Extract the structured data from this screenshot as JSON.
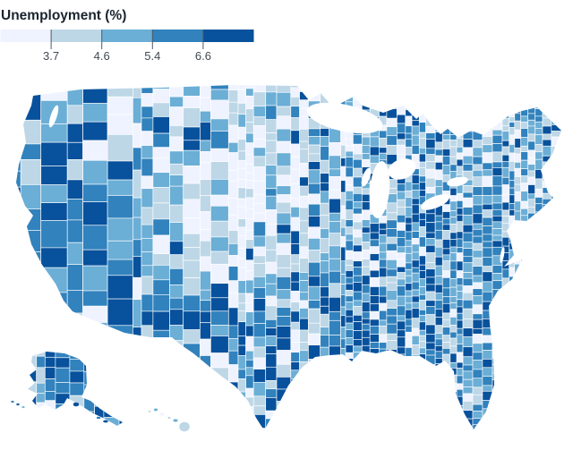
{
  "legend": {
    "title": "Unemployment (%)",
    "ticks": [
      "3.7",
      "4.6",
      "5.4",
      "6.6"
    ],
    "colors": [
      "#eff3ff",
      "#bdd7e7",
      "#6baed6",
      "#3182bd",
      "#08519c"
    ],
    "tick_color": "#4f5a64",
    "label_color": "#414a54",
    "title_color": "#1a242f"
  },
  "chart_data": {
    "type": "choropleth",
    "title": "Unemployment (%)",
    "geography": "United States counties, Albers USA projection with Alaska and Hawaii insets at lower left",
    "color_scale": {
      "type": "quantile",
      "scheme": "Blues",
      "classes": 5,
      "class_breaks_percent": [
        3.7,
        4.6,
        5.4,
        6.6
      ],
      "colors": [
        "#eff3ff",
        "#bdd7e7",
        "#6baed6",
        "#3182bd",
        "#08519c"
      ]
    },
    "legend_position": "top-left",
    "regional_pattern": [
      "Pacific coast (WA, OR, CA) and Nevada counties mostly in the highest quintiles (> 5.4%)",
      "Northern plains (MT, ND, SD, NE, KS, IA, MN) mostly in the lowest quintile (< 3.7%)",
      "Arizona, New Mexico and the Deep South (LA, MS, AL, GA) mostly in the highest quintile (> 6.6%)",
      "Appalachia (eastern KY, WV) shows a dark high-unemployment cluster",
      "Alaska predominantly highest quintile; Hawaii islands in low-to-mid quintiles",
      "Texas, Florida and the Midwest mixed across all quintiles"
    ]
  }
}
